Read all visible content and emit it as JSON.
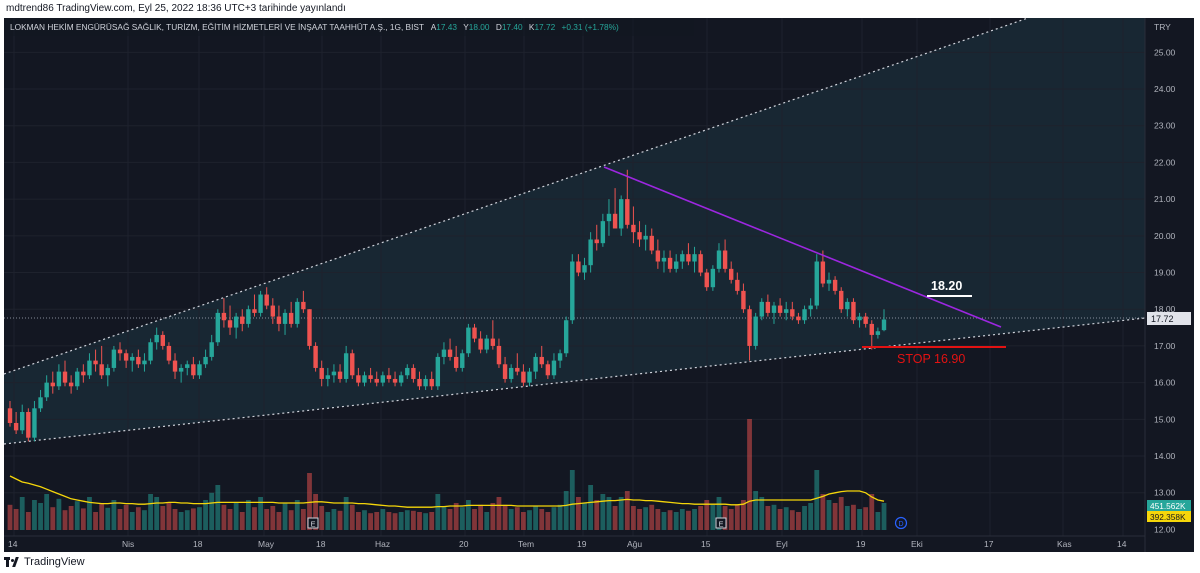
{
  "publish_line": "mdtrend86 TradingView.com, Eyl 25, 2022 18:36 UTC+3 tarihinde yayınlandı",
  "brand": "TradingView",
  "legend": {
    "symbol": "LOKMAN HEKİM ENGÜRÜSAĞ SAĞLIK, TURİZM, EĞİTİM HİZMETLERİ VE İNŞAAT TAAHHÜT A.Ş., 1G, BIST",
    "open_label": "A",
    "open": "17.43",
    "high_label": "Y",
    "high": "18.00",
    "low_label": "D",
    "low": "17.40",
    "close_label": "K",
    "close": "17.72",
    "change": "+0.31 (+1.78%)"
  },
  "colors": {
    "background": "#131722",
    "up": "#26a69a",
    "down": "#ef5350",
    "ma": "#f5d60a",
    "resistance": "#9c27e0",
    "stop": "#e31212"
  },
  "chart_data": {
    "type": "candlestick",
    "currency": "TRY",
    "ylim": [
      12.6,
      25.7
    ],
    "y_ticks": [
      "25.00",
      "24.00",
      "23.00",
      "22.00",
      "21.00",
      "20.00",
      "19.00",
      "18.00",
      "17.00",
      "16.00",
      "15.00",
      "14.00",
      "13.00",
      "12.00"
    ],
    "x_ticks": [
      "14",
      "Nis",
      "18",
      "May",
      "18",
      "Haz",
      "20",
      "Tem",
      "19",
      "Ağu",
      "15",
      "Eyl",
      "19",
      "Eki",
      "17",
      "Kas",
      "14"
    ],
    "last_price": "17.72",
    "volume_labels": [
      "451.562K",
      "392.358K"
    ],
    "annotations": [
      {
        "text": "18.20",
        "price": 18.2
      },
      {
        "text": "STOP 16.90",
        "price": 16.9
      }
    ],
    "earnings_markers": [
      "E",
      "E"
    ],
    "dividend_marker": "D",
    "candles": [
      [
        15.3,
        15.5,
        14.8,
        14.9
      ],
      [
        14.9,
        15.2,
        14.6,
        14.7
      ],
      [
        14.7,
        15.4,
        14.6,
        15.2
      ],
      [
        15.2,
        15.3,
        14.4,
        14.5
      ],
      [
        14.5,
        15.5,
        14.4,
        15.3
      ],
      [
        15.3,
        15.8,
        15.2,
        15.6
      ],
      [
        15.6,
        16.2,
        15.5,
        16.0
      ],
      [
        16.0,
        16.3,
        15.7,
        15.9
      ],
      [
        15.9,
        16.5,
        15.8,
        16.3
      ],
      [
        16.3,
        16.6,
        15.9,
        16.0
      ],
      [
        16.0,
        16.2,
        15.7,
        15.9
      ],
      [
        15.9,
        16.4,
        15.8,
        16.3
      ],
      [
        16.3,
        16.5,
        16.0,
        16.2
      ],
      [
        16.2,
        16.8,
        16.1,
        16.6
      ],
      [
        16.6,
        16.9,
        16.3,
        16.5
      ],
      [
        16.5,
        17.0,
        16.1,
        16.2
      ],
      [
        16.2,
        16.5,
        15.9,
        16.4
      ],
      [
        16.4,
        17.0,
        16.3,
        16.9
      ],
      [
        16.9,
        17.1,
        16.6,
        16.8
      ],
      [
        16.8,
        16.9,
        16.4,
        16.6
      ],
      [
        16.6,
        16.8,
        16.3,
        16.7
      ],
      [
        16.7,
        16.9,
        16.4,
        16.5
      ],
      [
        16.5,
        16.8,
        16.3,
        16.6
      ],
      [
        16.6,
        17.2,
        16.5,
        17.1
      ],
      [
        17.1,
        17.5,
        16.9,
        17.3
      ],
      [
        17.3,
        17.4,
        16.9,
        17.0
      ],
      [
        17.0,
        17.1,
        16.5,
        16.6
      ],
      [
        16.6,
        16.8,
        16.1,
        16.3
      ],
      [
        16.3,
        16.5,
        16.0,
        16.4
      ],
      [
        16.4,
        16.6,
        16.2,
        16.5
      ],
      [
        16.5,
        16.7,
        16.1,
        16.2
      ],
      [
        16.2,
        16.6,
        16.1,
        16.5
      ],
      [
        16.5,
        16.9,
        16.4,
        16.7
      ],
      [
        16.7,
        17.3,
        16.6,
        17.1
      ],
      [
        17.1,
        18.0,
        17.0,
        17.9
      ],
      [
        17.9,
        18.3,
        17.5,
        17.7
      ],
      [
        17.7,
        18.1,
        17.3,
        17.5
      ],
      [
        17.5,
        17.9,
        17.2,
        17.8
      ],
      [
        17.8,
        18.0,
        17.4,
        17.6
      ],
      [
        17.6,
        18.1,
        17.5,
        18.0
      ],
      [
        18.0,
        18.4,
        17.8,
        17.9
      ],
      [
        17.9,
        18.5,
        17.8,
        18.4
      ],
      [
        18.4,
        18.6,
        18.0,
        18.1
      ],
      [
        18.1,
        18.3,
        17.6,
        17.8
      ],
      [
        17.8,
        18.1,
        17.4,
        17.6
      ],
      [
        17.6,
        18.0,
        17.3,
        17.9
      ],
      [
        17.9,
        18.2,
        17.5,
        17.6
      ],
      [
        17.6,
        18.3,
        17.5,
        18.2
      ],
      [
        18.2,
        18.5,
        17.9,
        18.0
      ],
      [
        18.0,
        18.0,
        16.9,
        17.0
      ],
      [
        17.0,
        17.1,
        16.3,
        16.4
      ],
      [
        16.4,
        16.6,
        15.9,
        16.1
      ],
      [
        16.1,
        16.4,
        15.9,
        16.2
      ],
      [
        16.2,
        16.5,
        16.0,
        16.3
      ],
      [
        16.3,
        16.5,
        16.0,
        16.1
      ],
      [
        16.1,
        17.0,
        16.0,
        16.8
      ],
      [
        16.8,
        16.9,
        16.1,
        16.2
      ],
      [
        16.2,
        16.4,
        15.9,
        16.0
      ],
      [
        16.0,
        16.3,
        15.9,
        16.2
      ],
      [
        16.2,
        16.4,
        16.0,
        16.1
      ],
      [
        16.1,
        16.3,
        15.9,
        16.0
      ],
      [
        16.0,
        16.3,
        15.9,
        16.2
      ],
      [
        16.2,
        16.4,
        16.0,
        16.1
      ],
      [
        16.1,
        16.3,
        15.9,
        16.0
      ],
      [
        16.0,
        16.3,
        15.9,
        16.2
      ],
      [
        16.2,
        16.5,
        16.1,
        16.4
      ],
      [
        16.4,
        16.5,
        16.0,
        16.1
      ],
      [
        16.1,
        16.3,
        15.8,
        15.9
      ],
      [
        15.9,
        16.2,
        15.8,
        16.1
      ],
      [
        16.1,
        16.3,
        15.8,
        15.9
      ],
      [
        15.9,
        16.8,
        15.8,
        16.7
      ],
      [
        16.7,
        17.1,
        16.5,
        16.9
      ],
      [
        16.9,
        17.2,
        16.6,
        16.7
      ],
      [
        16.7,
        17.0,
        16.3,
        16.4
      ],
      [
        16.4,
        16.9,
        16.3,
        16.8
      ],
      [
        16.8,
        17.6,
        16.7,
        17.5
      ],
      [
        17.5,
        17.6,
        17.1,
        17.2
      ],
      [
        17.2,
        17.4,
        16.8,
        16.9
      ],
      [
        16.9,
        17.3,
        16.8,
        17.2
      ],
      [
        17.2,
        17.7,
        16.9,
        17.0
      ],
      [
        17.0,
        17.2,
        16.4,
        16.5
      ],
      [
        16.5,
        16.7,
        16.0,
        16.1
      ],
      [
        16.1,
        16.5,
        16.0,
        16.4
      ],
      [
        16.4,
        16.8,
        16.2,
        16.3
      ],
      [
        16.3,
        16.5,
        15.9,
        16.0
      ],
      [
        16.0,
        16.4,
        15.9,
        16.3
      ],
      [
        16.3,
        16.8,
        16.1,
        16.7
      ],
      [
        16.7,
        17.0,
        16.4,
        16.5
      ],
      [
        16.5,
        16.6,
        16.1,
        16.2
      ],
      [
        16.2,
        16.8,
        16.1,
        16.6
      ],
      [
        16.6,
        16.9,
        16.4,
        16.8
      ],
      [
        16.8,
        17.8,
        16.7,
        17.7
      ],
      [
        17.7,
        19.5,
        17.6,
        19.3
      ],
      [
        19.3,
        19.5,
        18.9,
        19.0
      ],
      [
        19.0,
        19.4,
        18.8,
        19.2
      ],
      [
        19.2,
        20.1,
        19.0,
        19.9
      ],
      [
        19.9,
        20.3,
        19.6,
        19.8
      ],
      [
        19.8,
        20.6,
        19.7,
        20.4
      ],
      [
        20.4,
        21.0,
        20.0,
        20.6
      ],
      [
        20.6,
        21.3,
        20.3,
        20.2
      ],
      [
        20.2,
        21.1,
        20.0,
        21.0
      ],
      [
        21.0,
        21.8,
        20.2,
        20.3
      ],
      [
        20.3,
        20.8,
        19.8,
        20.1
      ],
      [
        20.1,
        20.4,
        19.7,
        19.9
      ],
      [
        19.9,
        20.3,
        19.6,
        20.0
      ],
      [
        20.0,
        20.2,
        19.5,
        19.6
      ],
      [
        19.6,
        19.9,
        19.1,
        19.3
      ],
      [
        19.3,
        19.6,
        19.0,
        19.4
      ],
      [
        19.4,
        19.6,
        19.0,
        19.1
      ],
      [
        19.1,
        19.5,
        19.0,
        19.3
      ],
      [
        19.3,
        19.6,
        19.1,
        19.5
      ],
      [
        19.5,
        19.8,
        19.2,
        19.3
      ],
      [
        19.3,
        19.7,
        19.0,
        19.5
      ],
      [
        19.5,
        19.6,
        18.9,
        19.0
      ],
      [
        19.0,
        19.1,
        18.5,
        18.6
      ],
      [
        18.6,
        19.2,
        18.5,
        19.1
      ],
      [
        19.1,
        19.8,
        19.0,
        19.6
      ],
      [
        19.6,
        19.9,
        19.0,
        19.1
      ],
      [
        19.1,
        19.3,
        18.7,
        18.8
      ],
      [
        18.8,
        19.0,
        18.4,
        18.5
      ],
      [
        18.5,
        18.7,
        17.9,
        18.0
      ],
      [
        18.0,
        18.1,
        16.6,
        17.0
      ],
      [
        17.0,
        17.9,
        16.9,
        17.8
      ],
      [
        17.8,
        18.3,
        17.7,
        18.2
      ],
      [
        18.2,
        18.4,
        17.8,
        17.9
      ],
      [
        17.9,
        18.2,
        17.6,
        18.1
      ],
      [
        18.1,
        18.3,
        17.8,
        17.9
      ],
      [
        17.9,
        18.2,
        17.7,
        18.0
      ],
      [
        18.0,
        18.2,
        17.7,
        17.8
      ],
      [
        17.8,
        17.9,
        17.6,
        17.7
      ],
      [
        17.7,
        18.1,
        17.6,
        18.0
      ],
      [
        18.0,
        18.3,
        17.8,
        18.1
      ],
      [
        18.1,
        19.5,
        18.0,
        19.3
      ],
      [
        19.3,
        19.6,
        18.6,
        18.7
      ],
      [
        18.7,
        19.0,
        18.5,
        18.8
      ],
      [
        18.8,
        18.9,
        18.4,
        18.5
      ],
      [
        18.5,
        18.6,
        17.9,
        18.0
      ],
      [
        18.0,
        18.3,
        17.8,
        18.2
      ],
      [
        18.2,
        18.3,
        17.6,
        17.7
      ],
      [
        17.7,
        17.9,
        17.5,
        17.8
      ],
      [
        17.8,
        17.9,
        17.5,
        17.6
      ],
      [
        17.6,
        17.7,
        16.9,
        17.3
      ],
      [
        17.3,
        17.5,
        17.2,
        17.4
      ],
      [
        17.43,
        18.0,
        17.4,
        17.72
      ]
    ],
    "volumes": [
      0.42,
      0.35,
      0.55,
      0.3,
      0.5,
      0.45,
      0.6,
      0.38,
      0.52,
      0.33,
      0.4,
      0.48,
      0.36,
      0.55,
      0.3,
      0.44,
      0.37,
      0.5,
      0.35,
      0.42,
      0.3,
      0.38,
      0.33,
      0.6,
      0.55,
      0.4,
      0.45,
      0.35,
      0.3,
      0.33,
      0.36,
      0.38,
      0.5,
      0.62,
      0.75,
      0.42,
      0.35,
      0.45,
      0.3,
      0.5,
      0.38,
      0.55,
      0.35,
      0.4,
      0.3,
      0.44,
      0.33,
      0.5,
      0.35,
      0.95,
      0.6,
      0.4,
      0.3,
      0.35,
      0.32,
      0.55,
      0.42,
      0.3,
      0.33,
      0.28,
      0.3,
      0.35,
      0.3,
      0.28,
      0.3,
      0.33,
      0.32,
      0.3,
      0.28,
      0.3,
      0.6,
      0.4,
      0.35,
      0.45,
      0.38,
      0.5,
      0.35,
      0.42,
      0.3,
      0.45,
      0.55,
      0.42,
      0.35,
      0.38,
      0.3,
      0.33,
      0.4,
      0.35,
      0.3,
      0.38,
      0.42,
      0.65,
      1.0,
      0.55,
      0.45,
      0.75,
      0.5,
      0.6,
      0.55,
      0.4,
      0.55,
      0.65,
      0.4,
      0.35,
      0.38,
      0.42,
      0.35,
      0.3,
      0.33,
      0.3,
      0.35,
      0.32,
      0.35,
      0.4,
      0.5,
      0.42,
      0.55,
      0.4,
      0.35,
      0.42,
      0.5,
      1.85,
      0.65,
      0.55,
      0.4,
      0.42,
      0.35,
      0.38,
      0.33,
      0.3,
      0.4,
      0.45,
      1.0,
      0.6,
      0.5,
      0.45,
      0.55,
      0.4,
      0.42,
      0.35,
      0.38,
      0.6,
      0.3,
      0.45
    ],
    "ma": [
      0.9,
      0.85,
      0.8,
      0.78,
      0.75,
      0.72,
      0.68,
      0.64,
      0.6,
      0.56,
      0.52,
      0.5,
      0.48,
      0.46,
      0.45,
      0.44,
      0.44,
      0.45,
      0.45,
      0.44,
      0.44,
      0.43,
      0.43,
      0.44,
      0.45,
      0.45,
      0.46,
      0.46,
      0.45,
      0.45,
      0.44,
      0.44,
      0.44,
      0.45,
      0.46,
      0.46,
      0.46,
      0.46,
      0.46,
      0.46,
      0.46,
      0.46,
      0.46,
      0.46,
      0.45,
      0.45,
      0.45,
      0.45,
      0.45,
      0.46,
      0.47,
      0.47,
      0.46,
      0.45,
      0.45,
      0.45,
      0.45,
      0.44,
      0.44,
      0.43,
      0.42,
      0.41,
      0.4,
      0.4,
      0.39,
      0.38,
      0.38,
      0.38,
      0.38,
      0.38,
      0.39,
      0.39,
      0.4,
      0.4,
      0.4,
      0.41,
      0.41,
      0.41,
      0.41,
      0.41,
      0.41,
      0.41,
      0.41,
      0.4,
      0.4,
      0.4,
      0.4,
      0.4,
      0.4,
      0.4,
      0.4,
      0.41,
      0.43,
      0.44,
      0.45,
      0.46,
      0.47,
      0.48,
      0.49,
      0.49,
      0.5,
      0.51,
      0.5,
      0.5,
      0.49,
      0.49,
      0.48,
      0.47,
      0.46,
      0.45,
      0.44,
      0.44,
      0.43,
      0.43,
      0.43,
      0.43,
      0.43,
      0.43,
      0.42,
      0.42,
      0.43,
      0.48,
      0.5,
      0.5,
      0.5,
      0.5,
      0.5,
      0.5,
      0.5,
      0.5,
      0.5,
      0.5,
      0.53,
      0.56,
      0.6,
      0.62,
      0.64,
      0.65,
      0.65,
      0.65,
      0.62,
      0.55,
      0.5,
      0.48
    ]
  }
}
